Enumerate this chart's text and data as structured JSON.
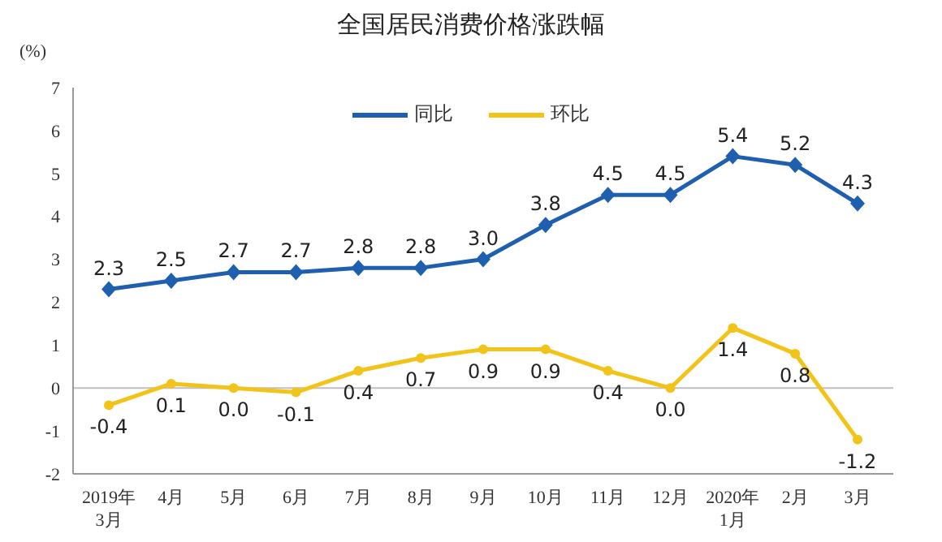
{
  "chart_data": {
    "type": "line",
    "title": "全国居民消费价格涨跌幅",
    "ylabel": "(%)",
    "categories": [
      "2019年\n3月",
      "4月",
      "5月",
      "6月",
      "7月",
      "8月",
      "9月",
      "10月",
      "11月",
      "12月",
      "2020年\n1月",
      "2月",
      "3月"
    ],
    "series": [
      {
        "name": "同比",
        "color": "#1f5fb0",
        "marker": "diamond",
        "values": [
          2.3,
          2.5,
          2.7,
          2.7,
          2.8,
          2.8,
          3.0,
          3.8,
          4.5,
          4.5,
          5.4,
          5.2,
          4.3
        ],
        "value_labels": [
          "2.3",
          "2.5",
          "2.7",
          "2.7",
          "2.8",
          "2.8",
          "3.0",
          "3.8",
          "4.5",
          "4.5",
          "5.4",
          "5.2",
          "4.3"
        ]
      },
      {
        "name": "环比",
        "color": "#f2c318",
        "marker": "circle",
        "values": [
          -0.4,
          0.1,
          0.0,
          -0.1,
          0.4,
          0.7,
          0.9,
          0.9,
          0.4,
          0.0,
          1.4,
          0.8,
          -1.2
        ],
        "value_labels": [
          "-0.4",
          "0.1",
          "0.0",
          "-0.1",
          "0.4",
          "0.7",
          "0.9",
          "0.9",
          "0.4",
          "0.0",
          "1.4",
          "0.8",
          "-1.2"
        ]
      }
    ],
    "ylim": [
      -2,
      7
    ],
    "yticks": [
      -2,
      -1,
      0,
      1,
      2,
      3,
      4,
      5,
      6,
      7
    ],
    "ref_lines": [
      {
        "axis": "y",
        "value": 0,
        "color": "#bfbfbf"
      }
    ],
    "legend": "top",
    "line_style": "solid"
  }
}
